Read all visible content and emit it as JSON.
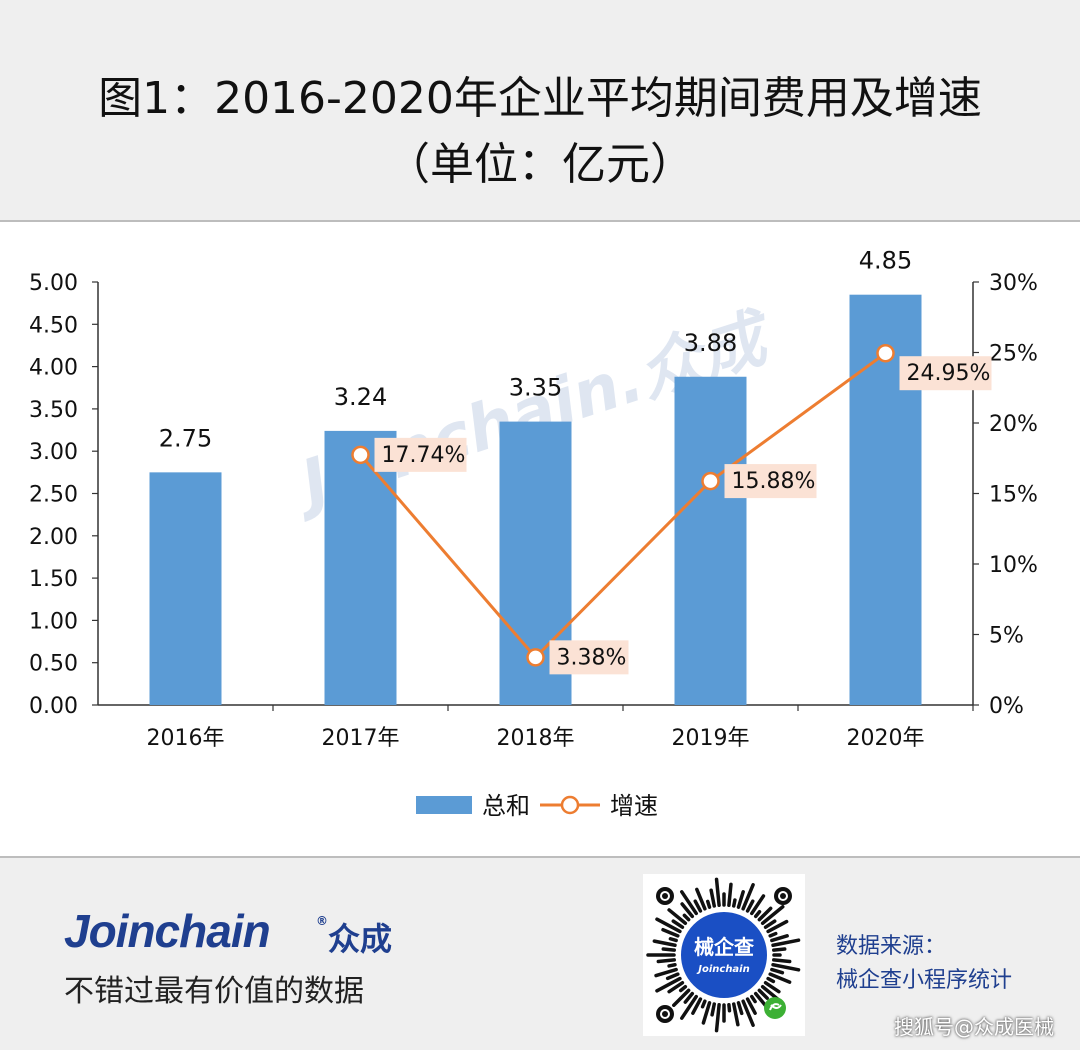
{
  "header": {
    "title_line1": "图1：2016-2020年企业平均期间费用及增速",
    "title_line2": "（单位：亿元）"
  },
  "chart_data": {
    "type": "bar",
    "categories": [
      "2016年",
      "2017年",
      "2018年",
      "2019年",
      "2020年"
    ],
    "series": [
      {
        "name": "总和",
        "type": "bar",
        "axis": "left",
        "values": [
          2.75,
          3.24,
          3.35,
          3.88,
          4.85
        ],
        "labels": [
          "2.75",
          "3.24",
          "3.35",
          "3.88",
          "4.85"
        ],
        "color": "#5b9bd5"
      },
      {
        "name": "增速",
        "type": "line",
        "axis": "right",
        "values": [
          null,
          17.74,
          3.38,
          15.88,
          24.95
        ],
        "labels": [
          "",
          "17.74%",
          "3.38%",
          "15.88%",
          "24.95%"
        ],
        "color": "#ed7d31"
      }
    ],
    "left_axis": {
      "ylim": [
        0,
        5
      ],
      "ticks": [
        "0.00",
        "0.50",
        "1.00",
        "1.50",
        "2.00",
        "2.50",
        "3.00",
        "3.50",
        "4.00",
        "4.50",
        "5.00"
      ]
    },
    "right_axis": {
      "ylim": [
        0,
        30
      ],
      "ticks": [
        "0%",
        "5%",
        "10%",
        "15%",
        "20%",
        "25%",
        "30%"
      ]
    },
    "legend": "bottom",
    "grid": false,
    "watermark": "Joinchain.众成"
  },
  "footer": {
    "brand": "Joinchain",
    "brand_cn": "众成",
    "slogan": "不错过最有价值的数据",
    "qr_label_cn": "械企查",
    "qr_label_en": "Joinchain",
    "source_line1": "数据来源：",
    "source_line2": "械企查小程序统计",
    "credit": "搜狐号@众成医械"
  }
}
